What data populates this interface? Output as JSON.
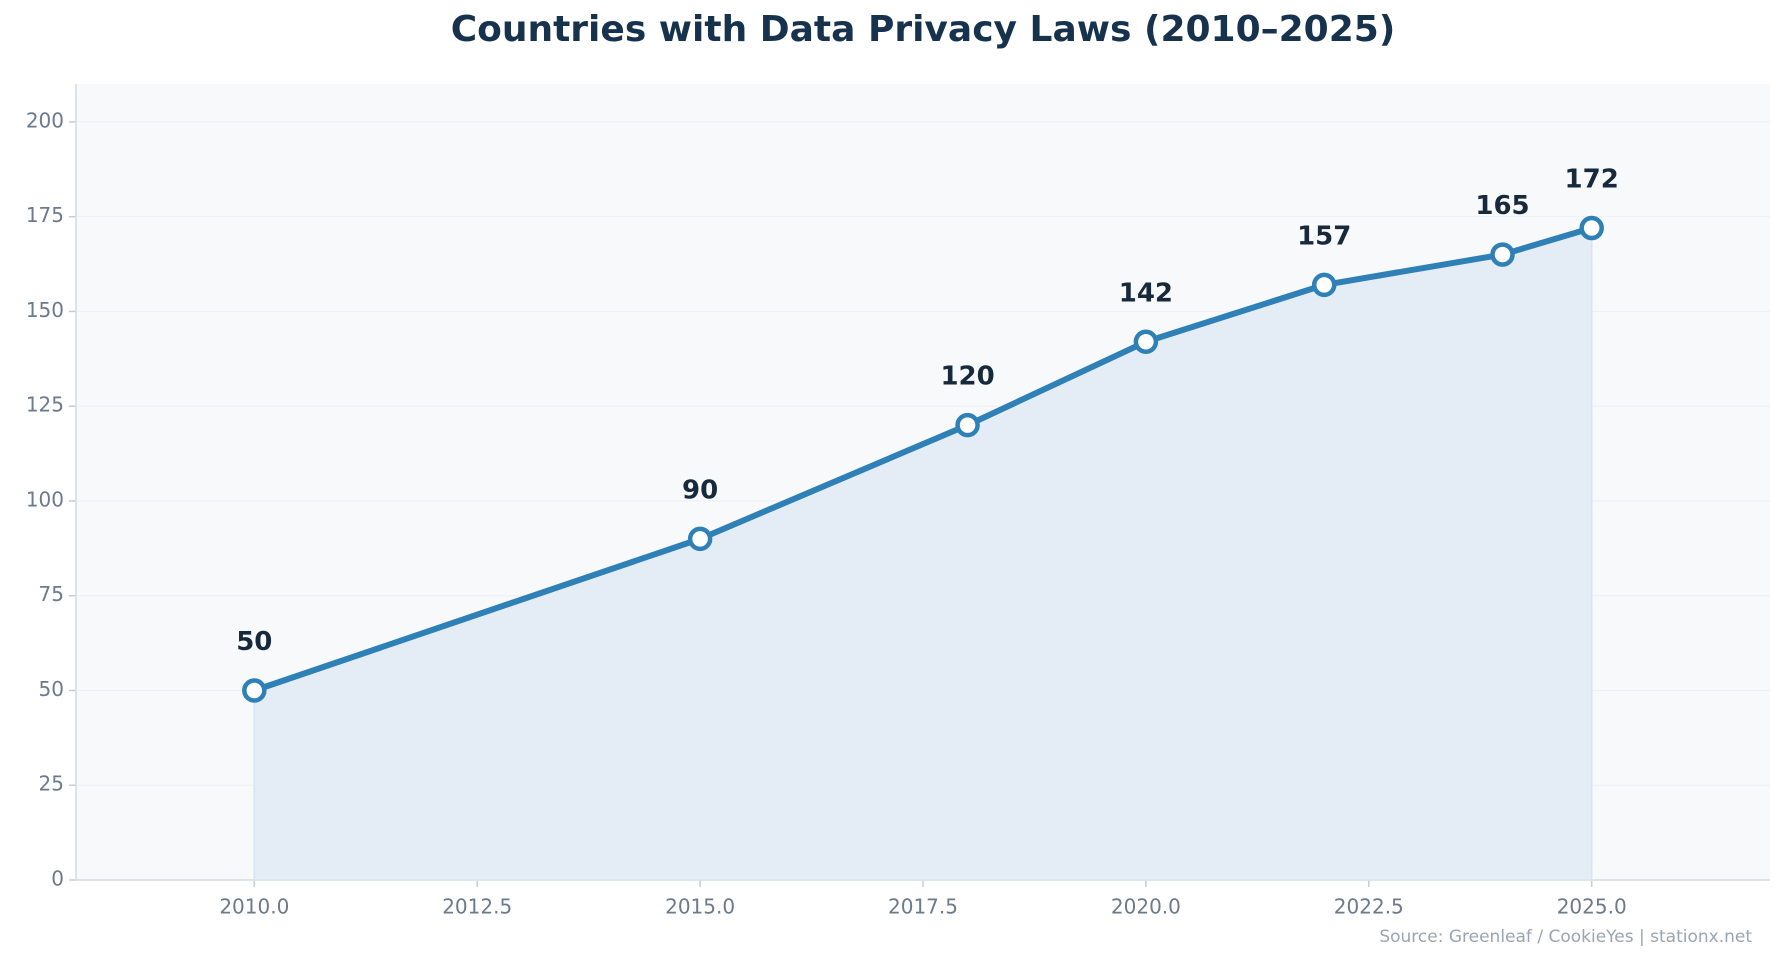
{
  "chart_data": {
    "type": "line",
    "title": "Countries with Data Privacy Laws (2010–2025)",
    "source": "Source: Greenleaf / CookieYes | stationx.net",
    "x": [
      2010,
      2015,
      2018,
      2020,
      2022,
      2024,
      2025
    ],
    "values": [
      50,
      90,
      120,
      142,
      157,
      165,
      172
    ],
    "color": "#2e80b6",
    "fill_color": "#e4edf6",
    "xlim": [
      2008,
      2027
    ],
    "ylim": [
      0,
      210
    ],
    "xticks": [
      {
        "value": 2010,
        "label": "2010.0"
      },
      {
        "value": 2012.5,
        "label": "2012.5"
      },
      {
        "value": 2015,
        "label": "2015.0"
      },
      {
        "value": 2017.5,
        "label": "2017.5"
      },
      {
        "value": 2020,
        "label": "2020.0"
      },
      {
        "value": 2022.5,
        "label": "2022.5"
      },
      {
        "value": 2025,
        "label": "2025.0"
      }
    ],
    "yticks": [
      0,
      25,
      50,
      75,
      100,
      125,
      150,
      175,
      200
    ],
    "grid": true
  }
}
